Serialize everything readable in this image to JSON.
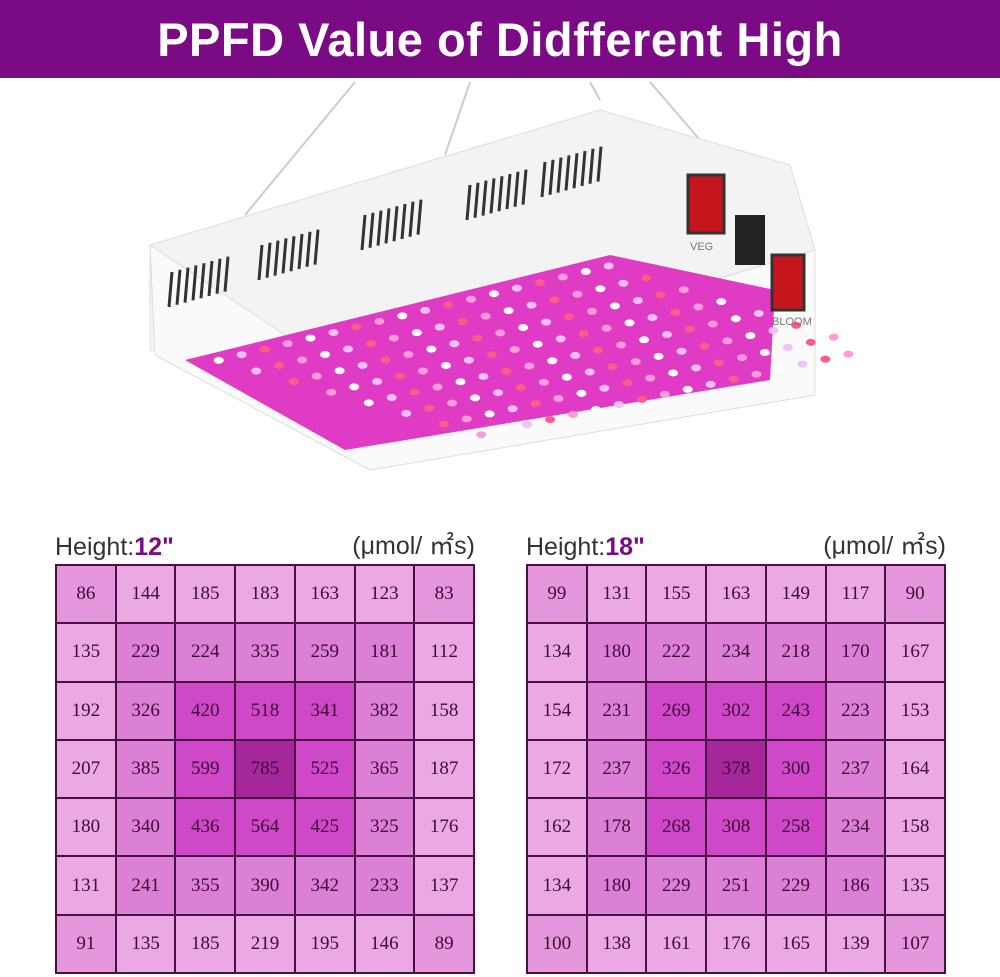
{
  "banner": {
    "title": "PPFD Value of Didfferent High"
  },
  "lamp": {
    "switch_labels": [
      "VEG",
      "BLOOM"
    ]
  },
  "colors": {
    "banner": "#7a0b84",
    "corner": "#e597dd",
    "ring0": "#eba8e3",
    "ring1": "#dc80d5",
    "ring2": "#cf48c7",
    "center": "#a4289a",
    "border": "#4a1044"
  },
  "chart_data": [
    {
      "type": "heatmap",
      "title_label": "Height:",
      "title_value": "12\"",
      "unit": "(μmol/ ㎡s)",
      "rows": [
        [
          86,
          144,
          185,
          183,
          163,
          123,
          83
        ],
        [
          135,
          229,
          224,
          335,
          259,
          181,
          112
        ],
        [
          192,
          326,
          420,
          518,
          341,
          382,
          158
        ],
        [
          207,
          385,
          599,
          785,
          525,
          365,
          187
        ],
        [
          180,
          340,
          436,
          564,
          425,
          325,
          176
        ],
        [
          131,
          241,
          355,
          390,
          342,
          233,
          137
        ],
        [
          91,
          135,
          185,
          219,
          195,
          146,
          89
        ]
      ]
    },
    {
      "type": "heatmap",
      "title_label": "Height:",
      "title_value": "18\"",
      "unit": "(μmol/ ㎡s)",
      "rows": [
        [
          99,
          131,
          155,
          163,
          149,
          117,
          90
        ],
        [
          134,
          180,
          222,
          234,
          218,
          170,
          167
        ],
        [
          154,
          231,
          269,
          302,
          243,
          223,
          153
        ],
        [
          172,
          237,
          326,
          378,
          300,
          237,
          164
        ],
        [
          162,
          178,
          268,
          308,
          258,
          234,
          158
        ],
        [
          134,
          180,
          229,
          251,
          229,
          186,
          135
        ],
        [
          100,
          138,
          161,
          176,
          165,
          139,
          107
        ]
      ]
    }
  ]
}
